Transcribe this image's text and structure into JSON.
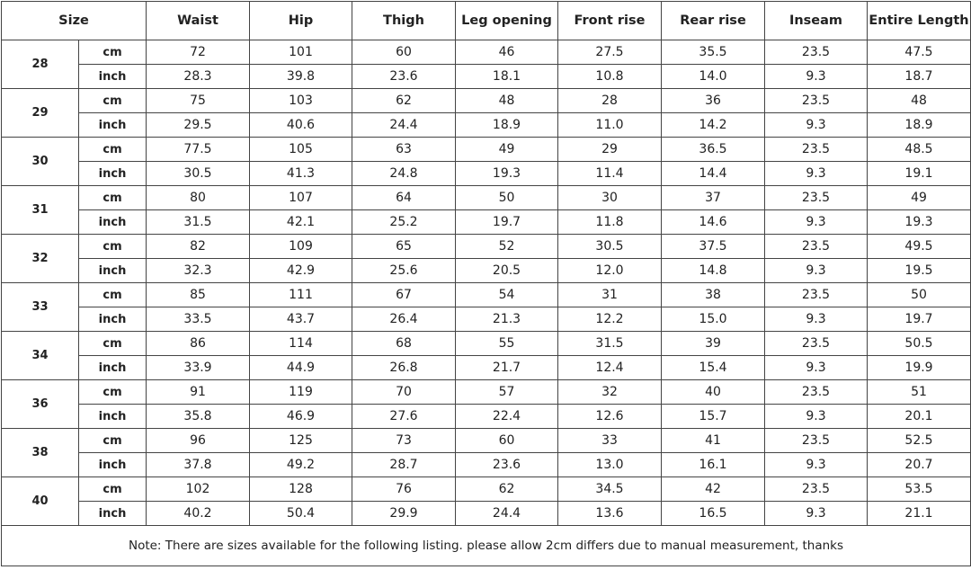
{
  "table": {
    "header": [
      "Size",
      "Waist",
      "Hip",
      "Thigh",
      "Leg opening",
      "Front rise",
      "Rear rise",
      "Inseam",
      "Entire Length"
    ],
    "sizes": [
      {
        "size": "28",
        "rows": [
          {
            "unit": "cm",
            "values": [
              "72",
              "101",
              "60",
              "46",
              "27.5",
              "35.5",
              "23.5",
              "47.5"
            ]
          },
          {
            "unit": "inch",
            "values": [
              "28.3",
              "39.8",
              "23.6",
              "18.1",
              "10.8",
              "14.0",
              "9.3",
              "18.7"
            ]
          }
        ]
      },
      {
        "size": "29",
        "rows": [
          {
            "unit": "cm",
            "values": [
              "75",
              "103",
              "62",
              "48",
              "28",
              "36",
              "23.5",
              "48"
            ]
          },
          {
            "unit": "inch",
            "values": [
              "29.5",
              "40.6",
              "24.4",
              "18.9",
              "11.0",
              "14.2",
              "9.3",
              "18.9"
            ]
          }
        ]
      },
      {
        "size": "30",
        "rows": [
          {
            "unit": "cm",
            "values": [
              "77.5",
              "105",
              "63",
              "49",
              "29",
              "36.5",
              "23.5",
              "48.5"
            ]
          },
          {
            "unit": "inch",
            "values": [
              "30.5",
              "41.3",
              "24.8",
              "19.3",
              "11.4",
              "14.4",
              "9.3",
              "19.1"
            ]
          }
        ]
      },
      {
        "size": "31",
        "rows": [
          {
            "unit": "cm",
            "values": [
              "80",
              "107",
              "64",
              "50",
              "30",
              "37",
              "23.5",
              "49"
            ]
          },
          {
            "unit": "inch",
            "values": [
              "31.5",
              "42.1",
              "25.2",
              "19.7",
              "11.8",
              "14.6",
              "9.3",
              "19.3"
            ]
          }
        ]
      },
      {
        "size": "32",
        "rows": [
          {
            "unit": "cm",
            "values": [
              "82",
              "109",
              "65",
              "52",
              "30.5",
              "37.5",
              "23.5",
              "49.5"
            ]
          },
          {
            "unit": "inch",
            "values": [
              "32.3",
              "42.9",
              "25.6",
              "20.5",
              "12.0",
              "14.8",
              "9.3",
              "19.5"
            ]
          }
        ]
      },
      {
        "size": "33",
        "rows": [
          {
            "unit": "cm",
            "values": [
              "85",
              "111",
              "67",
              "54",
              "31",
              "38",
              "23.5",
              "50"
            ]
          },
          {
            "unit": "inch",
            "values": [
              "33.5",
              "43.7",
              "26.4",
              "21.3",
              "12.2",
              "15.0",
              "9.3",
              "19.7"
            ]
          }
        ]
      },
      {
        "size": "34",
        "rows": [
          {
            "unit": "cm",
            "values": [
              "86",
              "114",
              "68",
              "55",
              "31.5",
              "39",
              "23.5",
              "50.5"
            ]
          },
          {
            "unit": "inch",
            "values": [
              "33.9",
              "44.9",
              "26.8",
              "21.7",
              "12.4",
              "15.4",
              "9.3",
              "19.9"
            ]
          }
        ]
      },
      {
        "size": "36",
        "rows": [
          {
            "unit": "cm",
            "values": [
              "91",
              "119",
              "70",
              "57",
              "32",
              "40",
              "23.5",
              "51"
            ]
          },
          {
            "unit": "inch",
            "values": [
              "35.8",
              "46.9",
              "27.6",
              "22.4",
              "12.6",
              "15.7",
              "9.3",
              "20.1"
            ]
          }
        ]
      },
      {
        "size": "38",
        "rows": [
          {
            "unit": "cm",
            "values": [
              "96",
              "125",
              "73",
              "60",
              "33",
              "41",
              "23.5",
              "52.5"
            ]
          },
          {
            "unit": "inch",
            "values": [
              "37.8",
              "49.2",
              "28.7",
              "23.6",
              "13.0",
              "16.1",
              "9.3",
              "20.7"
            ]
          }
        ]
      },
      {
        "size": "40",
        "rows": [
          {
            "unit": "cm",
            "values": [
              "102",
              "128",
              "76",
              "62",
              "34.5",
              "42",
              "23.5",
              "53.5"
            ]
          },
          {
            "unit": "inch",
            "values": [
              "40.2",
              "50.4",
              "29.9",
              "24.4",
              "13.6",
              "16.5",
              "9.3",
              "21.1"
            ]
          }
        ]
      }
    ],
    "note": "Note: There are sizes available for the following listing. please allow 2cm differs due to manual measurement, thanks"
  }
}
